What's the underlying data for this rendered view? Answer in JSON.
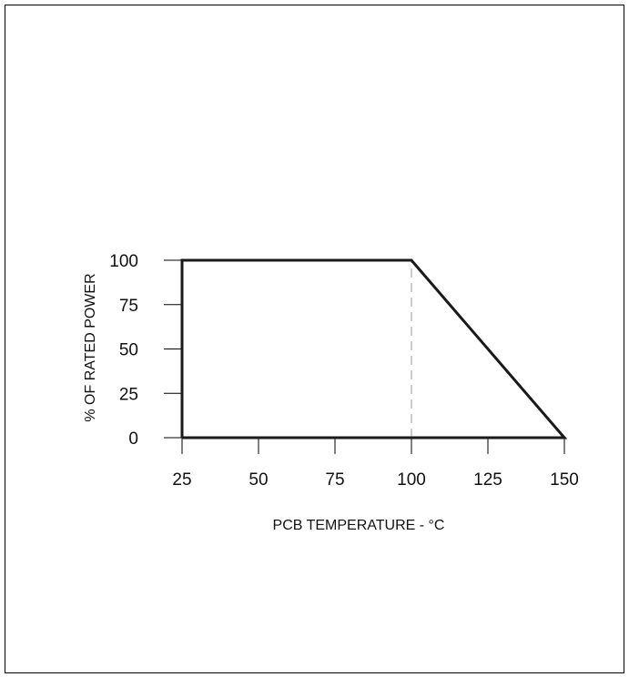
{
  "chart_data": {
    "type": "line",
    "xlabel": "PCB TEMPERATURE - °C",
    "ylabel": "% OF RATED POWER",
    "xlim": [
      25,
      150
    ],
    "ylim": [
      0,
      100
    ],
    "xticks": [
      25,
      50,
      75,
      100,
      125,
      150
    ],
    "yticks": [
      0,
      25,
      50,
      75,
      100
    ],
    "grid": false,
    "series": [
      {
        "x": [
          25,
          25,
          100,
          150,
          25
        ],
        "y": [
          0,
          100,
          100,
          0,
          0
        ]
      }
    ],
    "reference_lines": [
      {
        "orientation": "vertical",
        "x": 100,
        "from_y": 0,
        "to_y": 100,
        "style": "dashed"
      }
    ],
    "colors": {
      "line": "#1a1a1a",
      "reference": "#9a9a9a",
      "axis": "#000000"
    }
  }
}
